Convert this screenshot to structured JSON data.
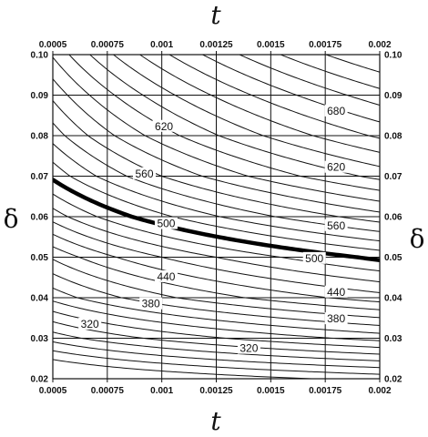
{
  "chart_data": {
    "type": "contour",
    "xlabel": "t",
    "ylabel": "δ",
    "xlim": [
      0.0005,
      0.002
    ],
    "ylim": [
      0.02,
      0.1
    ],
    "x_ticks": [
      "0.0005",
      "0.00075",
      "0.001",
      "0.00125",
      "0.0015",
      "0.00175",
      "0.002"
    ],
    "y_ticks": [
      "0.02",
      "0.03",
      "0.04",
      "0.05",
      "0.06",
      "0.07",
      "0.08",
      "0.09",
      "0.10"
    ],
    "grid": true,
    "contour_levels": [
      200,
      220,
      240,
      260,
      280,
      300,
      320,
      340,
      360,
      380,
      400,
      420,
      440,
      460,
      480,
      500,
      520,
      540,
      560,
      580,
      600,
      620,
      640,
      660,
      680,
      700,
      720,
      740,
      760,
      780,
      800
    ],
    "highlighted_level": 500,
    "labels": [
      {
        "text": "320",
        "t": 0.00067,
        "delta": 0.0335
      },
      {
        "text": "320",
        "t": 0.0014,
        "delta": 0.0275
      },
      {
        "text": "380",
        "t": 0.00095,
        "delta": 0.0385
      },
      {
        "text": "380",
        "t": 0.0018,
        "delta": 0.0348
      },
      {
        "text": "440",
        "t": 0.00102,
        "delta": 0.0452
      },
      {
        "text": "440",
        "t": 0.0018,
        "delta": 0.0414
      },
      {
        "text": "500",
        "t": 0.00102,
        "delta": 0.0583
      },
      {
        "text": "500",
        "t": 0.0017,
        "delta": 0.0497
      },
      {
        "text": "560",
        "t": 0.00092,
        "delta": 0.0706
      },
      {
        "text": "560",
        "t": 0.0018,
        "delta": 0.0578
      },
      {
        "text": "620",
        "t": 0.00101,
        "delta": 0.0823
      },
      {
        "text": "620",
        "t": 0.0018,
        "delta": 0.0722
      },
      {
        "text": "680",
        "t": 0.0018,
        "delta": 0.0861
      }
    ]
  }
}
